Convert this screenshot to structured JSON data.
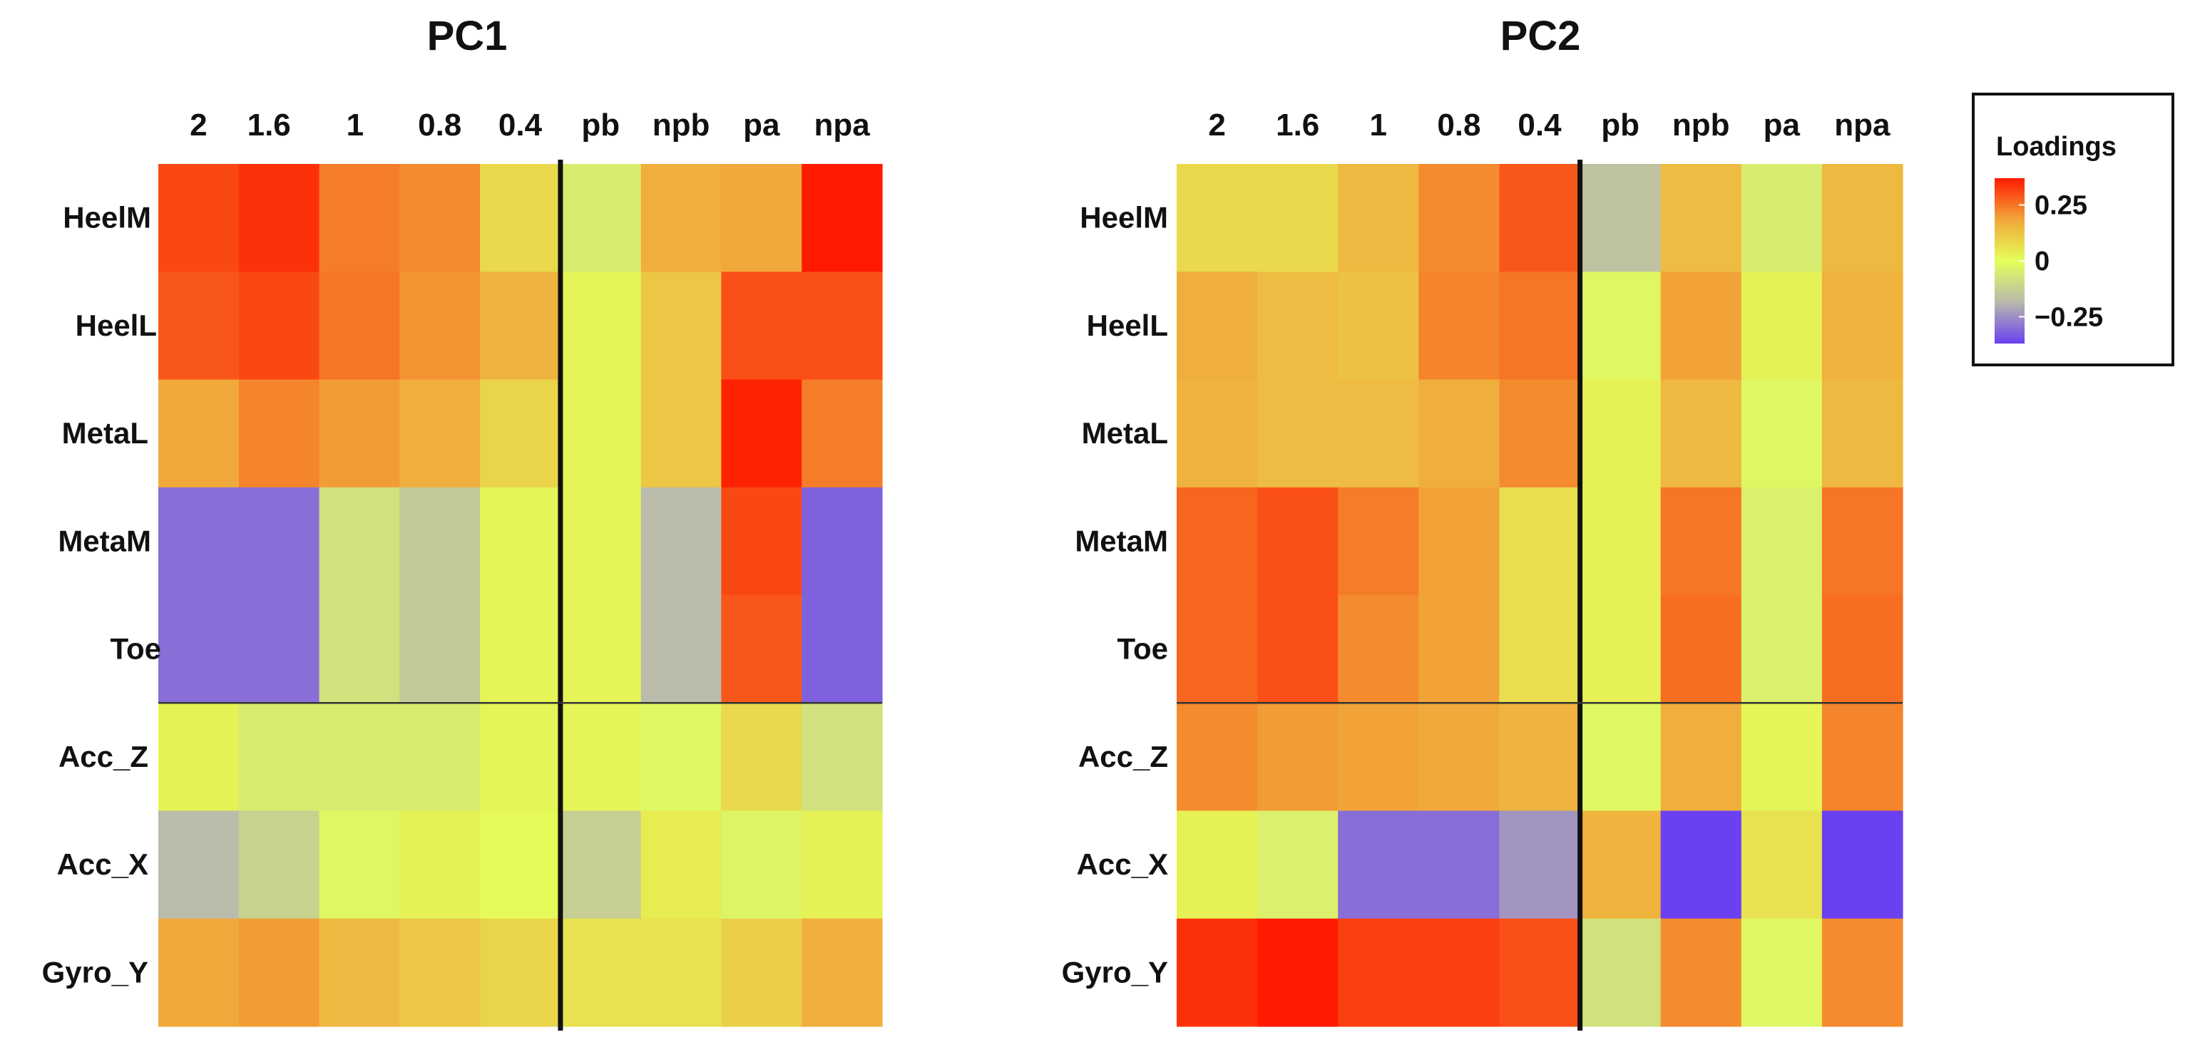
{
  "chart_data": [
    {
      "type": "heatmap",
      "title": "PC1",
      "columns": [
        "2",
        "1.6",
        "1",
        "0.8",
        "0.4",
        "pb",
        "npb",
        "pa",
        "npa"
      ],
      "rows": [
        "HeelM",
        "HeelL",
        "MetaL",
        "MetaM",
        "Toe",
        "Acc_Z",
        "Acc_X",
        "Gyro_Y"
      ],
      "values": [
        [
          0.31,
          0.34,
          0.24,
          0.22,
          0.08,
          -0.05,
          0.17,
          0.18,
          0.37
        ],
        [
          0.29,
          0.31,
          0.25,
          0.21,
          0.16,
          0.02,
          0.12,
          0.3,
          0.3
        ],
        [
          0.18,
          0.23,
          0.2,
          0.17,
          0.09,
          0.02,
          0.12,
          0.36,
          0.24
        ],
        [
          -0.3,
          -0.3,
          -0.08,
          -0.14,
          0.02,
          0.02,
          -0.18,
          0.31,
          -0.32
        ],
        [
          -0.3,
          -0.3,
          -0.08,
          -0.14,
          0.02,
          0.02,
          -0.18,
          0.29,
          -0.32
        ],
        [
          0.03,
          -0.05,
          -0.05,
          -0.05,
          0.02,
          0.02,
          -0.02,
          0.08,
          -0.08
        ],
        [
          -0.18,
          -0.12,
          -0.02,
          0.03,
          0.01,
          -0.13,
          0.04,
          -0.03,
          0.03
        ],
        [
          0.18,
          0.2,
          0.15,
          0.12,
          0.09,
          0.06,
          0.06,
          0.1,
          0.17
        ]
      ],
      "col_separator_after": "0.4",
      "row_separator_after": "Toe"
    },
    {
      "type": "heatmap",
      "title": "PC2",
      "columns": [
        "2",
        "1.6",
        "1",
        "0.8",
        "0.4",
        "pb",
        "npb",
        "pa",
        "npa"
      ],
      "rows": [
        "HeelM",
        "HeelL",
        "MetaL",
        "MetaM",
        "Toe",
        "Acc_Z",
        "Acc_X",
        "Gyro_Y"
      ],
      "values": [
        [
          0.08,
          0.08,
          0.15,
          0.22,
          0.29,
          -0.16,
          0.14,
          -0.05,
          0.15
        ],
        [
          0.17,
          0.14,
          0.13,
          0.23,
          0.25,
          -0.02,
          0.19,
          0.03,
          0.16
        ],
        [
          0.16,
          0.14,
          0.14,
          0.17,
          0.22,
          0.03,
          0.15,
          -0.02,
          0.15
        ],
        [
          0.27,
          0.3,
          0.24,
          0.19,
          0.07,
          0.03,
          0.25,
          -0.04,
          0.25
        ],
        [
          0.27,
          0.3,
          0.22,
          0.19,
          0.07,
          0.03,
          0.26,
          -0.04,
          0.26
        ],
        [
          0.22,
          0.2,
          0.19,
          0.18,
          0.16,
          -0.02,
          0.17,
          0.02,
          0.23
        ],
        [
          0.03,
          -0.04,
          -0.3,
          -0.3,
          -0.24,
          0.16,
          -0.38,
          0.06,
          -0.45
        ],
        [
          0.34,
          0.37,
          0.32,
          0.32,
          0.3,
          -0.08,
          0.22,
          -0.02,
          0.22
        ]
      ],
      "col_separator_after": "0.4",
      "row_separator_after": "Toe"
    }
  ],
  "legend": {
    "title": "Loadings",
    "ticks": [
      {
        "value": 0.25,
        "label": "0.25"
      },
      {
        "value": 0,
        "label": "0"
      },
      {
        "value": -0.25,
        "label": "−0.25"
      }
    ],
    "range": [
      -0.37,
      0.37
    ],
    "colors": [
      "#6a40f0",
      "#b9b9ac",
      "#e4ff5a",
      "#f1a73a",
      "#ff1a00"
    ]
  }
}
